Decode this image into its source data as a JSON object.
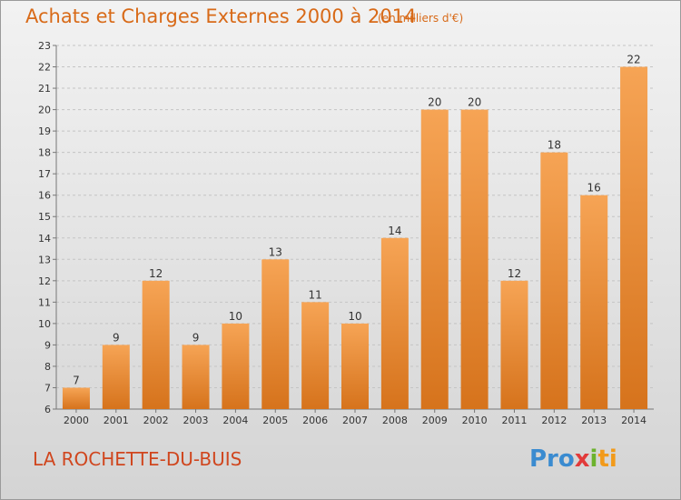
{
  "header": {
    "title": "Achats et Charges Externes 2000 à 2014",
    "unit": "(en milliers d'€)"
  },
  "footer": {
    "commune": "LA ROCHETTE-DU-BUIS",
    "logo": [
      "Pro",
      "x",
      "i",
      "ti"
    ]
  },
  "colors": {
    "bar_light": "#f6a455",
    "bar_dark": "#d6731c",
    "title": "#d86a18",
    "commune": "#d0461e"
  },
  "chart_data": {
    "type": "bar",
    "title": "Achats et Charges Externes 2000 à 2014",
    "xlabel": "",
    "ylabel": "",
    "categories": [
      "2000",
      "2001",
      "2002",
      "2003",
      "2004",
      "2005",
      "2006",
      "2007",
      "2008",
      "2009",
      "2010",
      "2011",
      "2012",
      "2013",
      "2014"
    ],
    "values": [
      7,
      9,
      12,
      9,
      10,
      13,
      11,
      10,
      14,
      20,
      20,
      12,
      18,
      16,
      22
    ],
    "ylim": [
      6,
      23
    ],
    "yticks": [
      6,
      7,
      8,
      9,
      10,
      11,
      12,
      13,
      14,
      15,
      16,
      17,
      18,
      19,
      20,
      21,
      22,
      23
    ],
    "grid": "horizontal-dashed",
    "data_labels": true
  }
}
